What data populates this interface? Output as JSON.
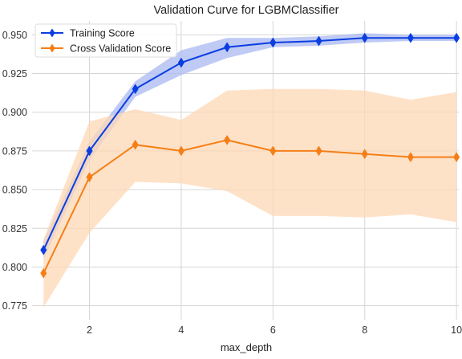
{
  "chart_data": {
    "type": "line",
    "title": "Validation Curve for LGBMClassifier",
    "xlabel": "max_depth",
    "ylabel": "",
    "xlim": [
      0.75,
      10.05
    ],
    "ylim": [
      0.766,
      0.959
    ],
    "xticks": [
      2,
      4,
      6,
      8,
      10
    ],
    "yticks": [
      0.775,
      0.8,
      0.825,
      0.85,
      0.875,
      0.9,
      0.925,
      0.95
    ],
    "ytick_labels": [
      "0.775",
      "0.800",
      "0.825",
      "0.850",
      "0.875",
      "0.900",
      "0.925",
      "0.950"
    ],
    "grid": true,
    "legend_position": "top-left",
    "x": [
      1,
      2,
      3,
      4,
      5,
      6,
      7,
      8,
      9,
      10
    ],
    "series": [
      {
        "name": "Training Score",
        "color": "#0b3ee0",
        "band_color": "#a9b8f2",
        "marker": "diamond",
        "values": [
          0.811,
          0.875,
          0.915,
          0.932,
          0.942,
          0.945,
          0.946,
          0.948,
          0.948,
          0.948
        ],
        "upper": [
          0.817,
          0.881,
          0.92,
          0.94,
          0.948,
          0.948,
          0.949,
          0.951,
          0.95,
          0.95
        ],
        "lower": [
          0.805,
          0.869,
          0.91,
          0.924,
          0.935,
          0.942,
          0.943,
          0.945,
          0.946,
          0.946
        ]
      },
      {
        "name": "Cross Validation Score",
        "color": "#f57f17",
        "band_color": "#fdd8b5",
        "marker": "diamond",
        "values": [
          0.796,
          0.858,
          0.879,
          0.875,
          0.882,
          0.875,
          0.875,
          0.873,
          0.871,
          0.871
        ],
        "upper": [
          0.818,
          0.894,
          0.902,
          0.895,
          0.914,
          0.915,
          0.915,
          0.914,
          0.908,
          0.913
        ],
        "lower": [
          0.774,
          0.822,
          0.855,
          0.854,
          0.849,
          0.833,
          0.833,
          0.832,
          0.834,
          0.829
        ]
      }
    ]
  }
}
